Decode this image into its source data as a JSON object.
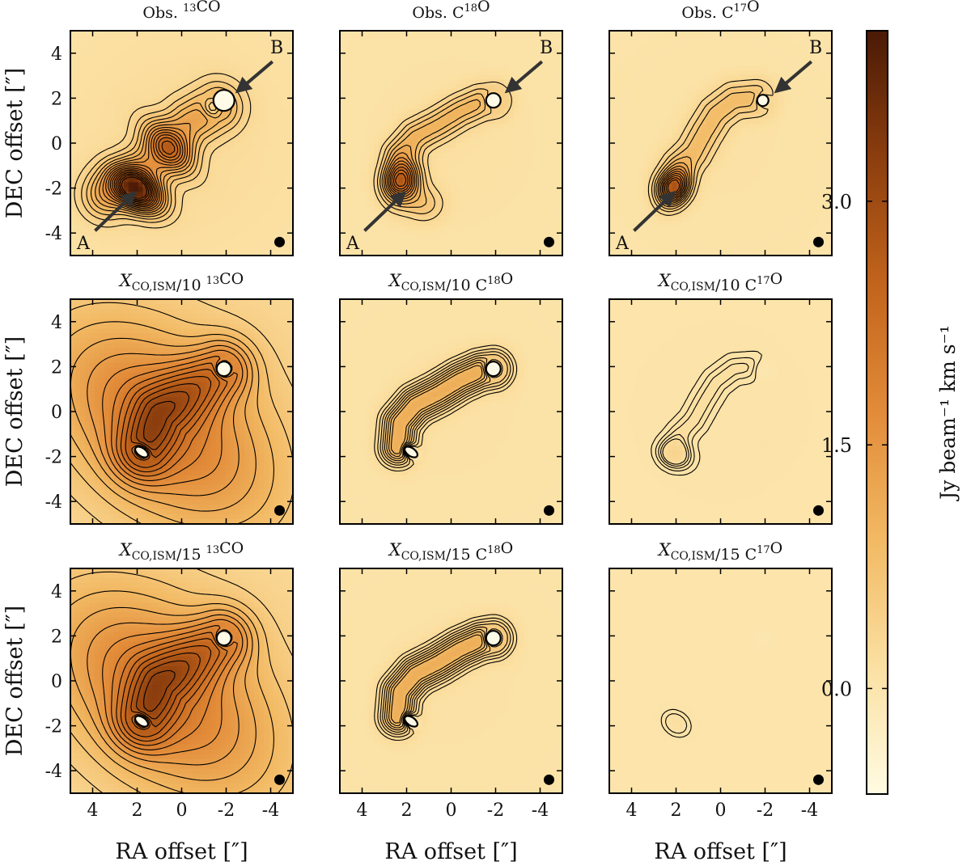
{
  "figure": {
    "panels": [
      {
        "row": 0,
        "col": 0,
        "title": "Obs. ¹³CO",
        "label_a": "A",
        "label_b": "B",
        "style": "obs13",
        "peak": 3.2
      },
      {
        "row": 0,
        "col": 1,
        "title": "Obs. C¹⁸O",
        "label_a": "A",
        "label_b": "B",
        "style": "obs18",
        "peak": 2.4
      },
      {
        "row": 0,
        "col": 2,
        "title": "Obs. C¹⁷O",
        "label_a": "A",
        "label_b": "B",
        "style": "obs17",
        "peak": 2.3
      },
      {
        "row": 1,
        "col": 0,
        "title": "XCO,ISM/10 ¹³CO",
        "label_a": "",
        "label_b": "",
        "style": "mod13",
        "peak": 3.6
      },
      {
        "row": 1,
        "col": 1,
        "title": "XCO,ISM/10 C¹⁸O",
        "label_a": "",
        "label_b": "",
        "style": "mod18",
        "peak": 1.3
      },
      {
        "row": 1,
        "col": 2,
        "title": "XCO,ISM/10 C¹⁷O",
        "label_a": "",
        "label_b": "",
        "style": "mod17a",
        "peak": 0.25
      },
      {
        "row": 2,
        "col": 0,
        "title": "XCO,ISM/15 ¹³CO",
        "label_a": "",
        "label_b": "",
        "style": "mod13",
        "peak": 3.3
      },
      {
        "row": 2,
        "col": 1,
        "title": "XCO,ISM/15 C¹⁸O",
        "label_a": "",
        "label_b": "",
        "style": "mod18",
        "peak": 0.95
      },
      {
        "row": 2,
        "col": 2,
        "title": "XCO,ISM/15 C¹⁷O",
        "label_a": "",
        "label_b": "",
        "style": "mod17b",
        "peak": 0.12
      }
    ],
    "xlabel": "RA offset [″]",
    "ylabel": "DEC offset [″]",
    "xticks": [
      "4",
      "2",
      "0",
      "-2",
      "-4"
    ],
    "yticks": [
      "4",
      "2",
      "0",
      "-2",
      "-4"
    ],
    "colorbar": {
      "label": "Jy beam⁻¹ km s⁻¹",
      "ticks": [
        "3.0",
        "1.5",
        "0.0"
      ],
      "tick_values": [
        3.0,
        1.5,
        0.0
      ],
      "range": [
        -0.65,
        4.05
      ],
      "colormap": [
        "#fffbe2",
        "#fbe0a2",
        "#f2b963",
        "#e28b39",
        "#c2641c",
        "#8c3e0e",
        "#4a1a06"
      ]
    }
  },
  "chart_data": {
    "type": "heatmap",
    "xlabel": "RA offset [″]",
    "ylabel": "DEC offset [″]",
    "xlim": [
      5,
      -5
    ],
    "ylim": [
      -5,
      5
    ],
    "sources": [
      {
        "name": "A",
        "ra": 2.0,
        "dec": -2.1
      },
      {
        "name": "B",
        "ra": -1.9,
        "dec": 1.9
      }
    ],
    "colorbar_range": [
      -0.65,
      4.05
    ],
    "colorbar_label": "Jy beam⁻¹ km s⁻¹",
    "panels": [
      "Obs. ¹³CO",
      "Obs. C¹⁸O",
      "Obs. C¹⁷O",
      "XCO,ISM/10 ¹³CO",
      "XCO,ISM/10 C¹⁸O",
      "XCO,ISM/10 C¹⁷O",
      "XCO,ISM/15 ¹³CO",
      "XCO,ISM/15 C¹⁸O",
      "XCO,ISM/15 C¹⁷O"
    ]
  }
}
